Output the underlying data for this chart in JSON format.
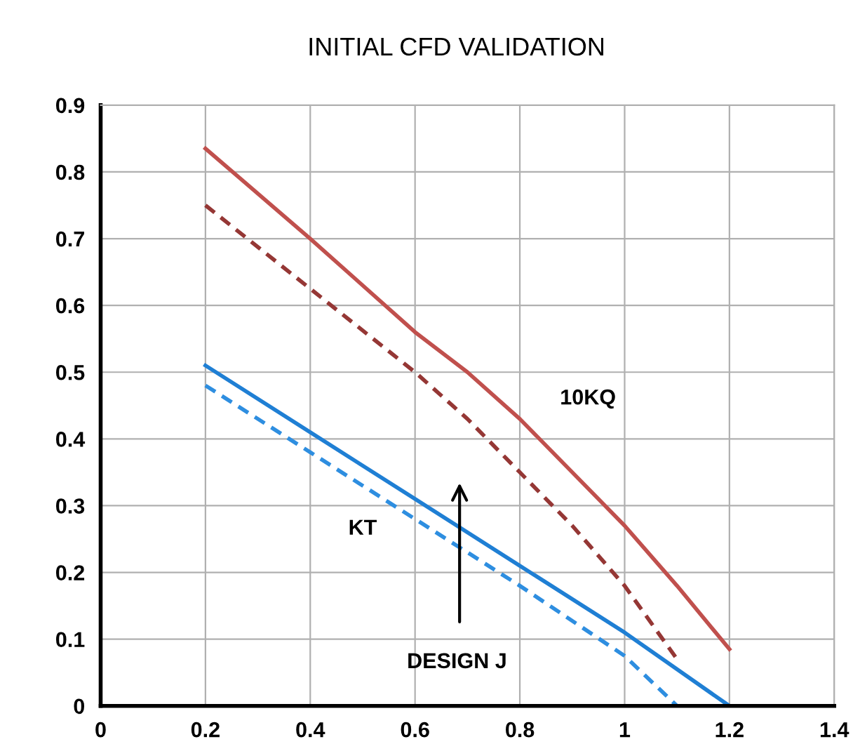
{
  "chart_data": {
    "type": "line",
    "title": "INITIAL CFD VALIDATION",
    "xlim": [
      0,
      1.4
    ],
    "xticks": [
      0,
      0.2,
      0.4,
      0.6,
      0.8,
      1,
      1.2,
      1.4
    ],
    "ylim": [
      0,
      0.9
    ],
    "yticks": [
      0,
      0.1,
      0.2,
      0.3,
      0.4,
      0.5,
      0.6,
      0.7,
      0.8,
      0.9
    ],
    "grid": true,
    "legend": false,
    "marker": "none",
    "series": [
      {
        "color": "#c0504d",
        "line_style": "solid",
        "x": [
          0.2,
          0.4,
          0.6,
          0.7,
          0.8,
          0.9,
          1.0,
          1.1,
          1.2
        ],
        "values": [
          0.835,
          0.7,
          0.56,
          0.5,
          0.43,
          0.35,
          0.27,
          0.18,
          0.085
        ]
      },
      {
        "color": "#953735",
        "line_style": "dashed",
        "x": [
          0.2,
          0.4,
          0.6,
          0.7,
          0.8,
          0.9,
          1.0,
          1.1
        ],
        "values": [
          0.75,
          0.625,
          0.5,
          0.43,
          0.35,
          0.27,
          0.18,
          0.07
        ]
      },
      {
        "color": "#1f7fd4",
        "line_style": "solid",
        "x": [
          0.2,
          0.4,
          0.6,
          0.8,
          1.0,
          1.2
        ],
        "values": [
          0.51,
          0.41,
          0.31,
          0.21,
          0.11,
          0.0
        ]
      },
      {
        "color": "#2e8ee0",
        "line_style": "dashed",
        "x": [
          0.2,
          0.4,
          0.6,
          0.8,
          1.0,
          1.1
        ],
        "values": [
          0.48,
          0.38,
          0.28,
          0.18,
          0.075,
          0.0
        ]
      }
    ],
    "annotations": [
      "10KQ",
      "KT",
      "DESIGN J"
    ]
  }
}
